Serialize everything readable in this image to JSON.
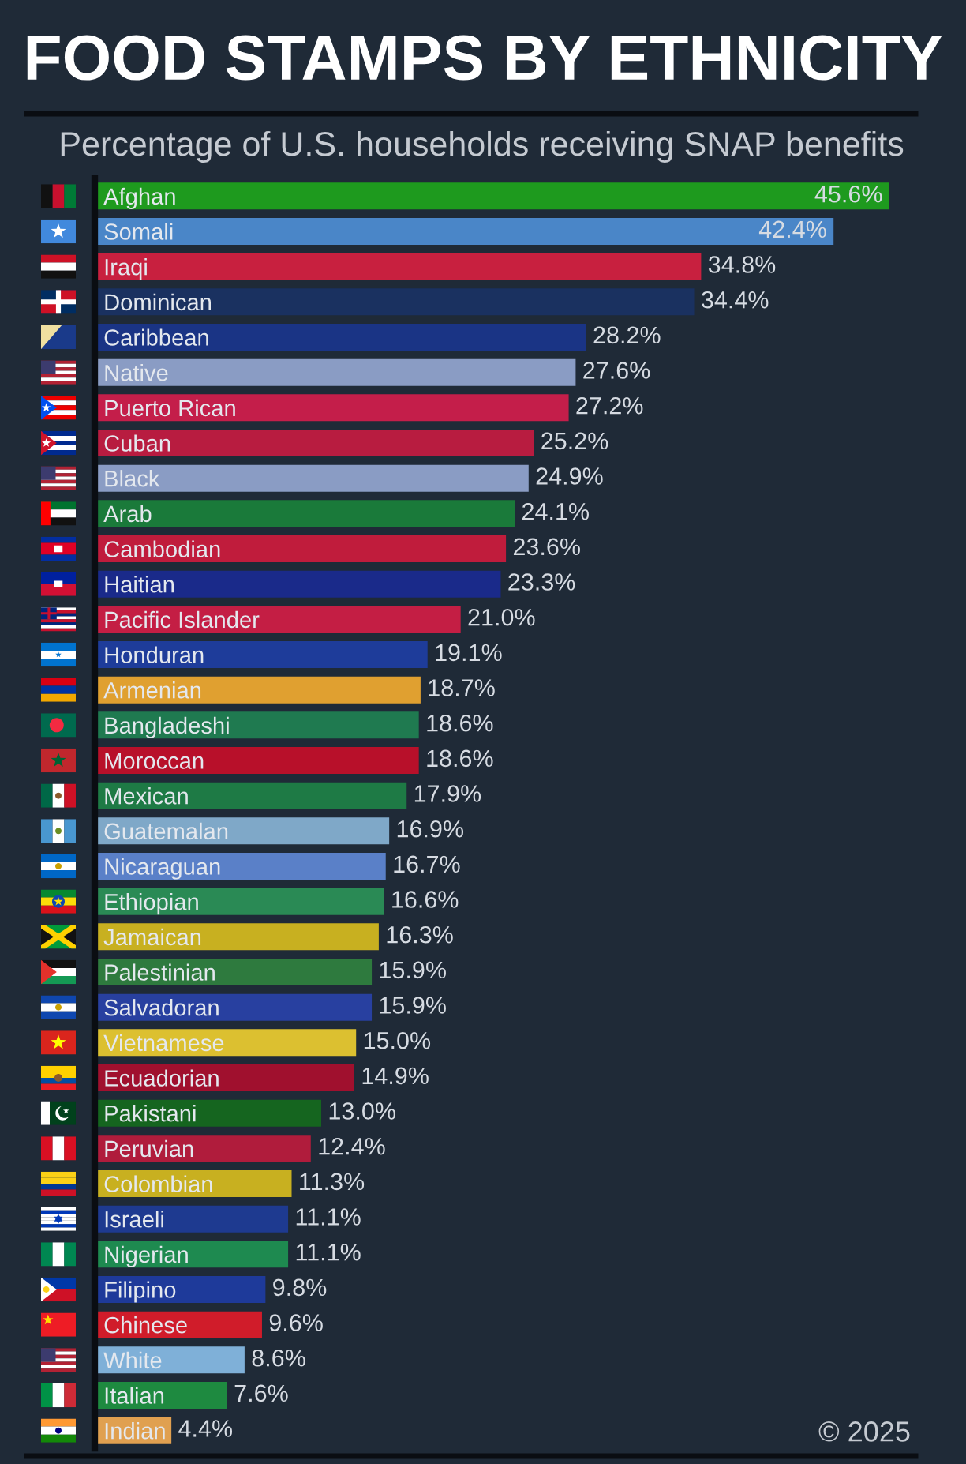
{
  "chart_data": {
    "type": "bar",
    "orientation": "horizontal",
    "title": "FOOD STAMPS BY ETHNICITY",
    "subtitle": "Percentage of U.S. households receiving SNAP benefits",
    "categories": [
      "Afghan",
      "Somali",
      "Iraqi",
      "Dominican",
      "Caribbean",
      "Native",
      "Puerto Rican",
      "Cuban",
      "Black",
      "Arab",
      "Cambodian",
      "Haitian",
      "Pacific Islander",
      "Honduran",
      "Armenian",
      "Bangladeshi",
      "Moroccan",
      "Mexican",
      "Guatemalan",
      "Nicaraguan",
      "Ethiopian",
      "Jamaican",
      "Palestinian",
      "Salvadoran",
      "Vietnamese",
      "Ecuadorian",
      "Pakistani",
      "Peruvian",
      "Colombian",
      "Israeli",
      "Nigerian",
      "Filipino",
      "Chinese",
      "White",
      "Italian",
      "Indian"
    ],
    "values": [
      45.6,
      42.4,
      34.8,
      34.4,
      28.2,
      27.6,
      27.2,
      25.2,
      24.9,
      24.1,
      23.6,
      23.3,
      21.0,
      19.1,
      18.7,
      18.6,
      18.6,
      17.9,
      16.9,
      16.7,
      16.6,
      16.3,
      15.9,
      15.9,
      15.0,
      14.9,
      13.0,
      12.4,
      11.3,
      11.1,
      11.1,
      9.8,
      9.6,
      8.6,
      7.6,
      4.4
    ],
    "value_labels": [
      "45.6%",
      "42.4%",
      "34.8%",
      "34.4%",
      "28.2%",
      "27.6%",
      "27.2%",
      "25.2%",
      "24.9%",
      "24.1%",
      "23.6%",
      "23.3%",
      "21.0%",
      "19.1%",
      "18.7%",
      "18.6%",
      "18.6%",
      "17.9%",
      "16.9%",
      "16.7%",
      "16.6%",
      "16.3%",
      "15.9%",
      "15.9%",
      "15.0%",
      "14.9%",
      "13.0%",
      "12.4%",
      "11.3%",
      "11.1%",
      "11.1%",
      "9.8%",
      "9.6%",
      "8.6%",
      "7.6%",
      "4.4%"
    ],
    "colors": [
      "#1e9a1e",
      "#4a86c8",
      "#c8203f",
      "#1a3160",
      "#1a3485",
      "#8a9cc4",
      "#c41e4a",
      "#b81c40",
      "#8a9cc4",
      "#1a7a3a",
      "#c01c3c",
      "#1a2a8a",
      "#c41e44",
      "#1e3c9a",
      "#e0a030",
      "#1f7a50",
      "#b8102a",
      "#1e7a45",
      "#7fa8c8",
      "#5a80c8",
      "#2a8a55",
      "#c8b020",
      "#2e7a3e",
      "#2840a0",
      "#dcc030",
      "#a0102e",
      "#15651f",
      "#b01c3c",
      "#c8b020",
      "#1e3a90",
      "#1e8a50",
      "#1e3a9a",
      "#d01c2a",
      "#7fb0d8",
      "#1e8a40",
      "#e0a050"
    ],
    "xlim": [
      0,
      50
    ],
    "tick_labels": "y",
    "annotations": [
      "© 2025"
    ]
  }
}
